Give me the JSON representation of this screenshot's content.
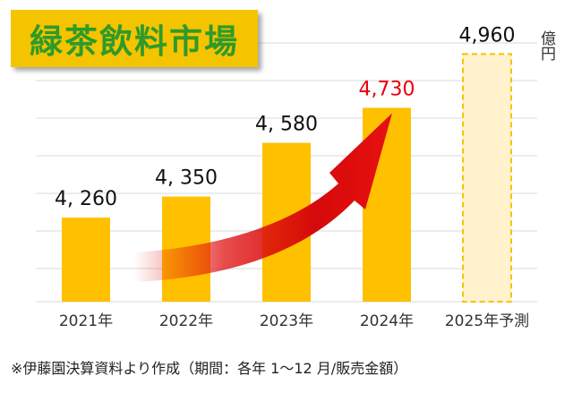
{
  "title": "緑茶飲料市場",
  "unit": "億円",
  "footnote": "※伊藤園決算資料より作成（期間：各年 1～12 月/販売金額）",
  "colors": {
    "bar": "#ffc000",
    "forecast_fill": "#fff2cc",
    "forecast_border": "#f5c400",
    "highlight_label": "#e8000f",
    "label": "#111111",
    "grid": "#d9d9d9",
    "title_bg": "#f5c400",
    "title_text": "#2f9a2a",
    "arrow": "#e01010"
  },
  "chart_data": {
    "type": "bar",
    "categories": [
      "2021年",
      "2022年",
      "2023年",
      "2024年",
      "2025年予測"
    ],
    "values": [
      4260,
      4350,
      4580,
      4730,
      4960
    ],
    "value_labels": [
      "4, 260",
      "4, 350",
      "4, 580",
      "4,730",
      "4,960"
    ],
    "forecast": [
      false,
      false,
      false,
      false,
      true
    ],
    "highlight": [
      false,
      false,
      false,
      true,
      false
    ],
    "title": "緑茶飲料市場",
    "ylabel": "億円",
    "xlabel": "",
    "ylim": [
      3900,
      5000
    ],
    "grid": true,
    "annotation": "growth-arrow"
  }
}
